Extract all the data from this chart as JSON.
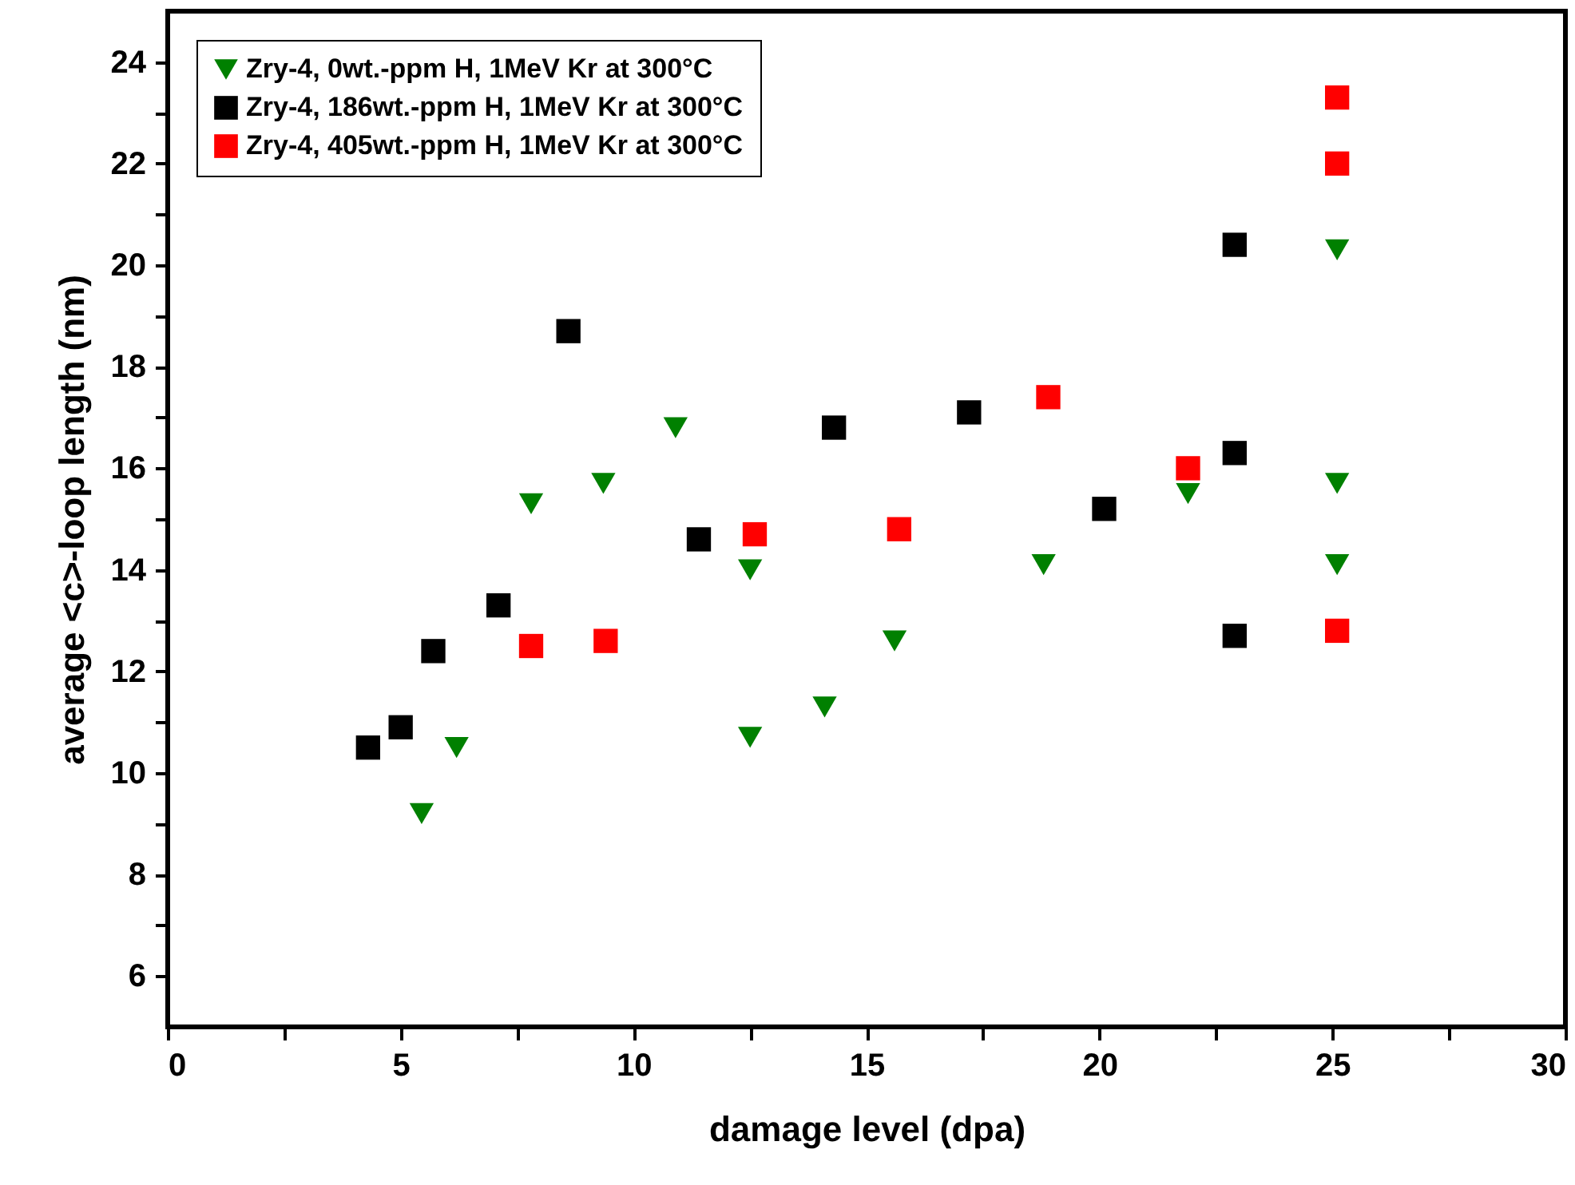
{
  "chart_data": {
    "type": "scatter",
    "xlabel": "damage level (dpa)",
    "ylabel": "average <c>-loop length (nm)",
    "xlim": [
      0,
      30
    ],
    "xticks": [
      0,
      {
        "value": 2.5,
        "label": null
      },
      5,
      {
        "value": 7.5,
        "label": null
      },
      10,
      {
        "value": 12.5,
        "label": null
      },
      15,
      {
        "value": 17.5,
        "label": null
      },
      20,
      {
        "value": 22.5,
        "label": null
      },
      25,
      {
        "value": 27.5,
        "label": null
      },
      30
    ],
    "ylim": [
      5,
      25
    ],
    "yticks": [
      6,
      {
        "value": 7,
        "label": null
      },
      8,
      {
        "value": 9,
        "label": null
      },
      10,
      {
        "value": 11,
        "label": null
      },
      12,
      {
        "value": 13,
        "label": null
      },
      14,
      {
        "value": 15,
        "label": null
      },
      16,
      {
        "value": 17,
        "label": null
      },
      18,
      {
        "value": 19,
        "label": null
      },
      20,
      {
        "value": 21,
        "label": null
      },
      22,
      {
        "value": 23,
        "label": null
      },
      24
    ],
    "grid": false,
    "legend": "top left",
    "series": [
      {
        "name": "Zry-4,     0wt.-ppm H, 1MeV Kr at 300°C",
        "color": "#008000",
        "marker": "triangle",
        "x": [
          5.45,
          6.2,
          7.8,
          9.35,
          10.9,
          12.5,
          12.5,
          14.1,
          15.6,
          18.8,
          21.9,
          25.1,
          25.1,
          25.1
        ],
        "values": [
          9.2,
          10.5,
          15.3,
          15.7,
          16.8,
          14.0,
          10.7,
          11.3,
          12.6,
          14.1,
          15.5,
          20.3,
          15.7,
          14.1
        ]
      },
      {
        "name": "Zry-4, 186wt.-ppm H, 1MeV Kr at 300°C",
        "color": "#000000",
        "marker": "square",
        "x": [
          4.3,
          5.0,
          5.7,
          7.1,
          8.6,
          11.4,
          14.3,
          17.2,
          20.1,
          22.9,
          22.9,
          22.9
        ],
        "values": [
          10.5,
          10.9,
          12.4,
          13.3,
          18.7,
          14.6,
          16.8,
          17.1,
          15.2,
          20.4,
          16.3,
          12.7
        ]
      },
      {
        "name": "Zry-4, 405wt.-ppm H, 1MeV Kr at 300°C",
        "color": "#ff0000",
        "marker": "square",
        "x": [
          7.8,
          9.4,
          12.6,
          15.7,
          18.9,
          21.9,
          25.1,
          25.1,
          25.1
        ],
        "values": [
          12.5,
          12.6,
          14.7,
          14.8,
          17.4,
          16.0,
          23.3,
          22.0,
          12.8
        ]
      }
    ]
  }
}
